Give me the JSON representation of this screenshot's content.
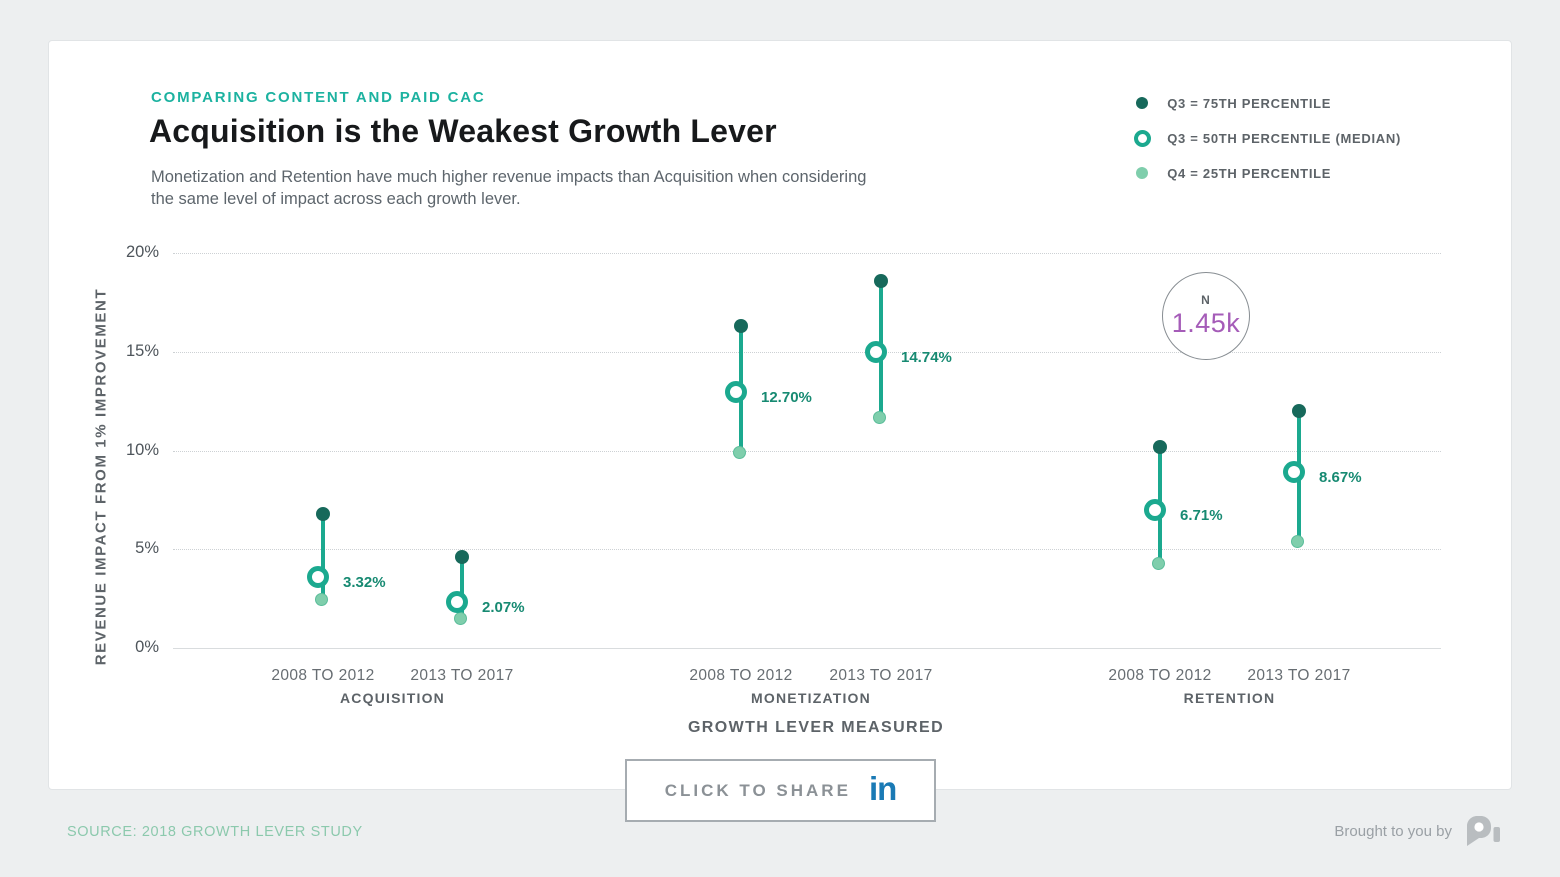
{
  "page": {
    "kicker": "COMPARING CONTENT AND PAID CAC",
    "title": "Acquisition is the Weakest Growth Lever",
    "subtitle_lines": [
      "Monetization and Retention have much higher revenue impacts than Acquisition when considering",
      "the same level of impact across each growth lever."
    ],
    "share_label": "CLICK TO SHARE",
    "linkedin_glyph": "in",
    "source": "SOURCE: 2018 GROWTH LEVER STUDY",
    "attribution": "Brought to you by"
  },
  "legend": {
    "items": [
      {
        "marker": "filled-dark-dot",
        "label": "Q3 = 75TH PERCENTILE"
      },
      {
        "marker": "ring-dot",
        "label": "Q3 = 50TH PERCENTILE (MEDIAN)"
      },
      {
        "marker": "filled-light-dot",
        "label": "Q4 = 25TH PERCENTILE"
      }
    ]
  },
  "sample_badge": {
    "label": "N",
    "value": "1.45k"
  },
  "colors": {
    "page_bg": "#edeff0",
    "card_border": "#e1e4e6",
    "kicker": "#1cb2a0",
    "title": "#17191b",
    "subtitle": "#5d656c",
    "teal_line": "#1ba98f",
    "dot_dark": "#17695b",
    "dot_light": "#7fceac",
    "dot_light_edge": "#5bbd9a",
    "value_text": "#178a72",
    "tick_text": "#4e555b",
    "axis_text": "#5d6368",
    "period_text": "#676d72",
    "grid": "#cdd1d4",
    "axisline": "#d9dcde",
    "badge_border": "#878d92",
    "purple": "#a55cb8",
    "linkedin_blue": "#1a7ab5",
    "share_border": "#a6acb1",
    "share_text": "#8b9196",
    "source_green": "#8cc9ad",
    "muted": "#9aa0a5",
    "logo_gray": "#b9bdc0"
  },
  "chart_data": {
    "type": "scatter",
    "variant": "lollipop-range",
    "title": "Acquisition is the Weakest Growth Lever",
    "xlabel": "GROWTH LEVER MEASURED",
    "ylabel": "REVENUE IMPACT FROM 1% IMPROVEMENT",
    "ylim": [
      0,
      20
    ],
    "yticks": [
      0,
      5,
      10,
      15,
      20
    ],
    "ytick_labels": [
      "0%",
      "5%",
      "10%",
      "15%",
      "20%"
    ],
    "grid": "dotted horizontal",
    "legend_position": "top-right",
    "sample_size": "1.45k",
    "groups": [
      {
        "name": "ACQUISITION",
        "periods": [
          {
            "label": "2008 TO 2012",
            "q75": 6.8,
            "median": 3.32,
            "q25": 2.4,
            "median_label": "3.32%"
          },
          {
            "label": "2013 TO 2017",
            "q75": 4.6,
            "median": 2.07,
            "q25": 1.4,
            "median_label": "2.07%"
          }
        ]
      },
      {
        "name": "MONETIZATION",
        "periods": [
          {
            "label": "2008 TO 2012",
            "q75": 16.3,
            "median": 12.7,
            "q25": 9.8,
            "median_label": "12.70%"
          },
          {
            "label": "2013 TO 2017",
            "q75": 18.6,
            "median": 14.74,
            "q25": 11.6,
            "median_label": "14.74%"
          }
        ]
      },
      {
        "name": "RETENTION",
        "periods": [
          {
            "label": "2008 TO 2012",
            "q75": 10.2,
            "median": 6.71,
            "q25": 4.2,
            "median_label": "6.71%"
          },
          {
            "label": "2013 TO 2017",
            "q75": 12.0,
            "median": 8.67,
            "q25": 5.3,
            "median_label": "8.67%"
          }
        ]
      }
    ]
  }
}
